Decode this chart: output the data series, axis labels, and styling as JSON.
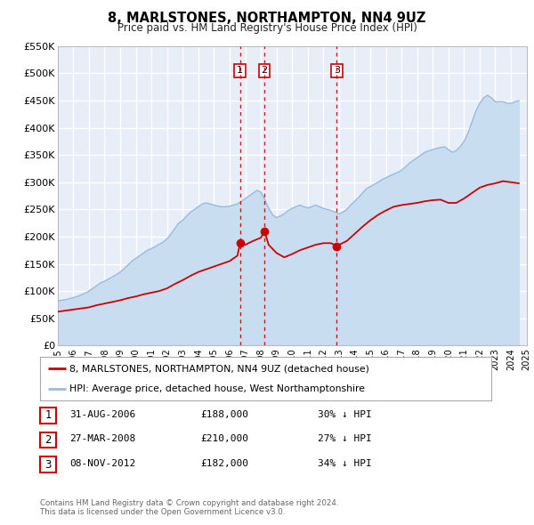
{
  "title": "8, MARLSTONES, NORTHAMPTON, NN4 9UZ",
  "subtitle": "Price paid vs. HM Land Registry's House Price Index (HPI)",
  "legend_line1": "8, MARLSTONES, NORTHAMPTON, NN4 9UZ (detached house)",
  "legend_line2": "HPI: Average price, detached house, West Northamptonshire",
  "footer1": "Contains HM Land Registry data © Crown copyright and database right 2024.",
  "footer2": "This data is licensed under the Open Government Licence v3.0.",
  "red_color": "#cc0000",
  "blue_color": "#99bbdd",
  "blue_fill_color": "#c8ddf0",
  "background_color": "#e8eef8",
  "grid_color": "#ffffff",
  "ylim": [
    0,
    550000
  ],
  "yticks": [
    0,
    50000,
    100000,
    150000,
    200000,
    250000,
    300000,
    350000,
    400000,
    450000,
    500000,
    550000
  ],
  "ytick_labels": [
    "£0",
    "£50K",
    "£100K",
    "£150K",
    "£200K",
    "£250K",
    "£300K",
    "£350K",
    "£400K",
    "£450K",
    "£500K",
    "£550K"
  ],
  "sale_events": [
    {
      "label": "1",
      "date": "31-AUG-2006",
      "price": "£188,000",
      "pct": "30%",
      "year": 2006.67,
      "value": 188000
    },
    {
      "label": "2",
      "date": "27-MAR-2008",
      "price": "£210,000",
      "pct": "27%",
      "year": 2008.23,
      "value": 210000
    },
    {
      "label": "3",
      "date": "08-NOV-2012",
      "price": "£182,000",
      "pct": "34%",
      "year": 2012.85,
      "value": 182000
    }
  ],
  "hpi_data_x": [
    1995.0,
    1995.25,
    1995.5,
    1995.75,
    1996.0,
    1996.25,
    1996.5,
    1996.75,
    1997.0,
    1997.25,
    1997.5,
    1997.75,
    1998.0,
    1998.25,
    1998.5,
    1998.75,
    1999.0,
    1999.25,
    1999.5,
    1999.75,
    2000.0,
    2000.25,
    2000.5,
    2000.75,
    2001.0,
    2001.25,
    2001.5,
    2001.75,
    2002.0,
    2002.25,
    2002.5,
    2002.75,
    2003.0,
    2003.25,
    2003.5,
    2003.75,
    2004.0,
    2004.25,
    2004.5,
    2004.75,
    2005.0,
    2005.25,
    2005.5,
    2005.75,
    2006.0,
    2006.25,
    2006.5,
    2006.75,
    2007.0,
    2007.25,
    2007.5,
    2007.75,
    2008.0,
    2008.25,
    2008.5,
    2008.75,
    2009.0,
    2009.25,
    2009.5,
    2009.75,
    2010.0,
    2010.25,
    2010.5,
    2010.75,
    2011.0,
    2011.25,
    2011.5,
    2011.75,
    2012.0,
    2012.25,
    2012.5,
    2012.75,
    2013.0,
    2013.25,
    2013.5,
    2013.75,
    2014.0,
    2014.25,
    2014.5,
    2014.75,
    2015.0,
    2015.25,
    2015.5,
    2015.75,
    2016.0,
    2016.25,
    2016.5,
    2016.75,
    2017.0,
    2017.25,
    2017.5,
    2017.75,
    2018.0,
    2018.25,
    2018.5,
    2018.75,
    2019.0,
    2019.25,
    2019.5,
    2019.75,
    2020.0,
    2020.25,
    2020.5,
    2020.75,
    2021.0,
    2021.25,
    2021.5,
    2021.75,
    2022.0,
    2022.25,
    2022.5,
    2022.75,
    2023.0,
    2023.25,
    2023.5,
    2023.75,
    2024.0,
    2024.25,
    2024.5
  ],
  "hpi_data_y": [
    82000,
    83000,
    84000,
    86000,
    88000,
    90000,
    93000,
    96000,
    100000,
    105000,
    110000,
    115000,
    118000,
    122000,
    126000,
    130000,
    135000,
    141000,
    148000,
    155000,
    160000,
    165000,
    170000,
    175000,
    178000,
    182000,
    186000,
    190000,
    196000,
    205000,
    215000,
    225000,
    230000,
    238000,
    245000,
    250000,
    255000,
    260000,
    262000,
    260000,
    258000,
    256000,
    255000,
    255000,
    256000,
    258000,
    260000,
    265000,
    270000,
    275000,
    280000,
    285000,
    282000,
    268000,
    252000,
    240000,
    235000,
    238000,
    242000,
    248000,
    252000,
    255000,
    258000,
    255000,
    253000,
    255000,
    258000,
    255000,
    252000,
    250000,
    248000,
    245000,
    242000,
    245000,
    250000,
    258000,
    265000,
    272000,
    280000,
    288000,
    292000,
    296000,
    300000,
    305000,
    308000,
    312000,
    315000,
    318000,
    322000,
    328000,
    335000,
    340000,
    345000,
    350000,
    355000,
    358000,
    360000,
    362000,
    364000,
    365000,
    360000,
    355000,
    358000,
    365000,
    375000,
    390000,
    410000,
    430000,
    445000,
    455000,
    460000,
    455000,
    448000,
    448000,
    448000,
    445000,
    445000,
    448000,
    450000
  ],
  "red_data_x": [
    1995.0,
    1995.5,
    1996.0,
    1996.5,
    1997.0,
    1997.5,
    1998.0,
    1998.5,
    1999.0,
    1999.5,
    2000.0,
    2000.5,
    2001.0,
    2001.5,
    2002.0,
    2002.5,
    2003.0,
    2003.5,
    2004.0,
    2004.5,
    2005.0,
    2005.5,
    2006.0,
    2006.5,
    2006.67,
    2007.0,
    2007.5,
    2008.0,
    2008.23,
    2008.5,
    2009.0,
    2009.5,
    2010.0,
    2010.5,
    2011.0,
    2011.5,
    2012.0,
    2012.5,
    2012.85,
    2013.0,
    2013.5,
    2014.0,
    2014.5,
    2015.0,
    2015.5,
    2016.0,
    2016.5,
    2017.0,
    2017.5,
    2018.0,
    2018.5,
    2019.0,
    2019.5,
    2020.0,
    2020.5,
    2021.0,
    2021.5,
    2022.0,
    2022.5,
    2023.0,
    2023.5,
    2024.0,
    2024.5
  ],
  "red_data_y": [
    62000,
    64000,
    66000,
    68000,
    70000,
    74000,
    77000,
    80000,
    83000,
    87000,
    90000,
    94000,
    97000,
    100000,
    105000,
    113000,
    120000,
    128000,
    135000,
    140000,
    145000,
    150000,
    155000,
    165000,
    188000,
    185000,
    192000,
    198000,
    210000,
    185000,
    170000,
    162000,
    168000,
    175000,
    180000,
    185000,
    188000,
    188000,
    182000,
    185000,
    192000,
    205000,
    218000,
    230000,
    240000,
    248000,
    255000,
    258000,
    260000,
    262000,
    265000,
    267000,
    268000,
    262000,
    262000,
    270000,
    280000,
    290000,
    295000,
    298000,
    302000,
    300000,
    298000
  ]
}
